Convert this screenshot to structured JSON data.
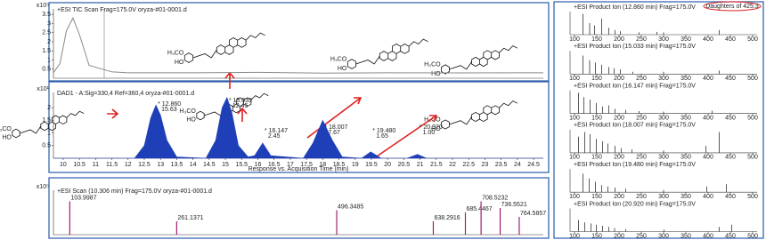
{
  "chart_data": [
    {
      "type": "line",
      "title": "+ESI TIC Scan Frag=175.0V oryza-#01-0001.d",
      "scale_label": "x10⁵",
      "color": "#888888",
      "x": [
        9.7,
        9.9,
        10.1,
        10.3,
        10.5,
        10.8,
        11.5,
        12,
        14,
        16,
        18,
        20,
        22,
        24,
        24.8
      ],
      "values": [
        0.3,
        0.8,
        2.6,
        3.3,
        2.4,
        0.7,
        0.35,
        0.3,
        0.3,
        0.32,
        0.28,
        0.3,
        0.29,
        0.3,
        0.3
      ],
      "xlim": [
        9.7,
        24.8
      ],
      "ylim": [
        0,
        3.8
      ],
      "yticks": [
        0.5,
        1,
        1.5,
        2,
        2.5,
        3,
        3.5
      ]
    },
    {
      "type": "area",
      "title": "DAD1 - A:Sig=330,4 Ref=360,4 oryza-#01-0001.d",
      "scale_label": "x10¹",
      "x_label": "Response vs. Acquisition Time (min)",
      "color": "#1e3fb8",
      "x": [
        9.7,
        12.2,
        12.5,
        12.7,
        12.86,
        13.0,
        13.2,
        13.5,
        14.4,
        14.7,
        14.9,
        15.05,
        15.2,
        15.4,
        15.7,
        15.9,
        16.15,
        16.4,
        17.4,
        17.7,
        18.0,
        18.3,
        18.6,
        19.2,
        19.48,
        19.8,
        20.6,
        20.92,
        21.2,
        24.8
      ],
      "values": [
        0,
        0,
        0.5,
        1.6,
        2.1,
        1.7,
        0.7,
        0.05,
        0,
        0.7,
        2.0,
        2.4,
        1.8,
        0.5,
        0.05,
        0.1,
        0.6,
        0.1,
        0,
        0.6,
        1.5,
        0.7,
        0.05,
        0,
        0.25,
        0,
        0,
        0.15,
        0,
        0
      ],
      "xlim": [
        9.7,
        24.8
      ],
      "ylim": [
        0,
        2.6
      ],
      "yticks": [
        0.5,
        1,
        1.5,
        2
      ],
      "xticks": [
        10,
        10.5,
        11,
        11.5,
        12,
        12.5,
        13,
        13.5,
        14,
        14.5,
        15,
        15.5,
        16,
        16.5,
        17,
        17.5,
        18,
        18.5,
        19,
        19.5,
        20,
        20.5,
        21,
        21.5,
        22,
        22.5,
        23,
        23.5,
        24,
        24.5
      ],
      "peak_labels": [
        {
          "x": 12.86,
          "label": "* 12.860",
          "area": "15.63"
        },
        {
          "x": 15.05,
          "label": "* 15.033",
          "area": "12.45"
        },
        {
          "x": 16.15,
          "label": "* 16.147",
          "area": "2.45"
        },
        {
          "x": 18.0,
          "label": "* 18.007",
          "area": "7.67"
        },
        {
          "x": 19.48,
          "label": "* 19.480",
          "area": "1.65"
        },
        {
          "x": 20.92,
          "label": "* 20.920",
          "area": "1.00"
        }
      ],
      "structure_labels": [
        "H₃CO",
        "HO"
      ]
    },
    {
      "type": "bar",
      "title": "+ESI Scan (10.306 min) Frag=175.0V oryza-#01-0001.d",
      "scale_label": "x10⁵",
      "color": "#a0206e",
      "x": [
        103.9987,
        261.1371,
        496.3485,
        638.2916,
        685.4467,
        708.5232,
        736.5521,
        764.5857
      ],
      "values": [
        0.75,
        0.3,
        0.55,
        0.3,
        0.5,
        0.75,
        0.6,
        0.4
      ],
      "xlim": [
        80,
        800
      ],
      "ylim": [
        0,
        1
      ]
    },
    {
      "type": "bar",
      "title": "+ESI Product Ion (12.860 min) Frag=175.0V",
      "color": "#333333",
      "note": "Daughters of 425.3",
      "x": [
        119,
        134,
        145,
        161,
        177,
        191,
        203,
        245,
        285,
        300,
        425
      ],
      "values": [
        0.9,
        0.5,
        0.4,
        0.7,
        0.3,
        0.2,
        0.15,
        0.1,
        0.12,
        0.1,
        0.2
      ],
      "xlim": [
        90,
        510
      ],
      "xticks": [
        100,
        150,
        200,
        250,
        300,
        350,
        400,
        450,
        500
      ]
    },
    {
      "type": "bar",
      "title": "+ESI Product Ion (15.033 min) Frag=175.0V",
      "color": "#333333",
      "x": [
        119,
        134,
        147,
        161,
        177,
        189,
        203,
        231,
        300,
        425
      ],
      "values": [
        0.8,
        0.6,
        0.5,
        0.4,
        0.3,
        0.25,
        0.2,
        0.1,
        0.1,
        0.15
      ],
      "xlim": [
        90,
        510
      ],
      "xticks": [
        100,
        150,
        200,
        250,
        300,
        350,
        400,
        450,
        500
      ]
    },
    {
      "type": "bar",
      "title": "+ESI Product Ion (16.147 min) Frag=175.0V",
      "color": "#333333",
      "x": [
        109,
        121,
        135,
        149,
        163,
        177,
        191,
        215,
        245,
        300,
        409
      ],
      "values": [
        0.9,
        0.7,
        0.6,
        0.45,
        0.3,
        0.35,
        0.2,
        0.15,
        0.1,
        0.08,
        0.12
      ],
      "xlim": [
        90,
        510
      ],
      "xticks": [
        100,
        150,
        200,
        250,
        300,
        350,
        400,
        450,
        500
      ]
    },
    {
      "type": "bar",
      "title": "+ESI Product Ion (18.007 min) Frag=175.0V",
      "color": "#333333",
      "x": [
        109,
        123,
        135,
        149,
        163,
        175,
        191,
        205,
        229,
        300,
        395,
        425
      ],
      "values": [
        0.7,
        0.9,
        0.8,
        0.6,
        0.5,
        0.4,
        0.3,
        0.2,
        0.15,
        0.1,
        0.3,
        0.9
      ],
      "xlim": [
        90,
        510
      ],
      "xticks": [
        100,
        150,
        200,
        250,
        300,
        350,
        400,
        450,
        500
      ]
    },
    {
      "type": "bar",
      "title": "+ESI Product Ion (19.480 min) Frag=175.0V",
      "color": "#333333",
      "x": [
        119,
        133,
        147,
        161,
        175,
        191,
        215,
        300,
        397,
        441
      ],
      "values": [
        0.8,
        0.6,
        0.45,
        0.3,
        0.25,
        0.2,
        0.15,
        0.1,
        0.25,
        0.35
      ],
      "xlim": [
        90,
        510
      ],
      "xticks": [
        100,
        150,
        200,
        250,
        300,
        350,
        400,
        450,
        500
      ]
    },
    {
      "type": "bar",
      "title": "+ESI Product Ion (20.920 min) Frag=175.0V",
      "color": "#333333",
      "x": [
        109,
        123,
        137,
        149,
        163,
        177,
        190,
        215,
        301,
        425,
        453
      ],
      "values": [
        0.5,
        0.4,
        0.35,
        0.3,
        0.25,
        0.2,
        0.15,
        0.1,
        0.08,
        0.2,
        0.3
      ],
      "xlim": [
        90,
        510
      ],
      "xticks": [
        100,
        150,
        200,
        250,
        300,
        350,
        400,
        450,
        500
      ]
    }
  ]
}
